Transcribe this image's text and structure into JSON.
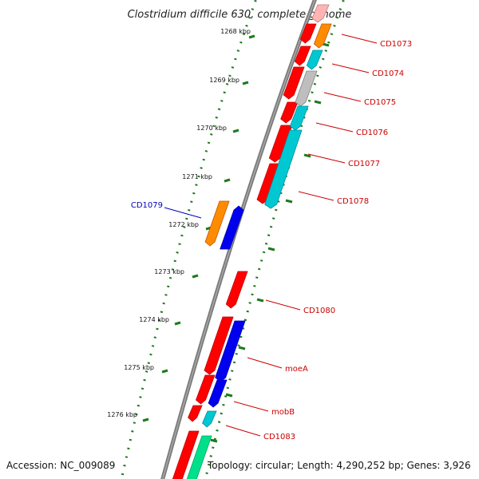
{
  "title": "Clostridium difficile 630, complete genome",
  "footer": {
    "accession": "Accession: NC_009089",
    "summary": "Topology: circular; Length: 4,290,252 bp; Genes: 3,926"
  },
  "colors": {
    "backbone": "#7a7a7a",
    "ticks": "#1d7a1d",
    "forward_label": "#cc0000",
    "reverse_label": "#0000bb",
    "red": "#ff0000",
    "orange": "#ff8c00",
    "cyan": "#00c8d2",
    "gray": "#bebebe",
    "blue": "#0000ee",
    "green": "#00e08c",
    "pink": "#ffb4b4"
  },
  "scale_labels": [
    "1268 kbp",
    "1269 kbp",
    "1270 kbp",
    "1271 kbp",
    "1272 kbp",
    "1273 kbp",
    "1274 kbp",
    "1275 kbp",
    "1276 kbp"
  ],
  "gene_labels": [
    {
      "text": "CD1073",
      "strand": "forward"
    },
    {
      "text": "CD1074",
      "strand": "forward"
    },
    {
      "text": "CD1075",
      "strand": "forward"
    },
    {
      "text": "CD1076",
      "strand": "forward"
    },
    {
      "text": "CD1077",
      "strand": "forward"
    },
    {
      "text": "CD1078",
      "strand": "forward"
    },
    {
      "text": "CD1079",
      "strand": "reverse"
    },
    {
      "text": "CD1080",
      "strand": "forward"
    },
    {
      "text": "moeA",
      "strand": "forward"
    },
    {
      "text": "mobB",
      "strand": "forward"
    },
    {
      "text": "CD1083",
      "strand": "forward"
    }
  ]
}
